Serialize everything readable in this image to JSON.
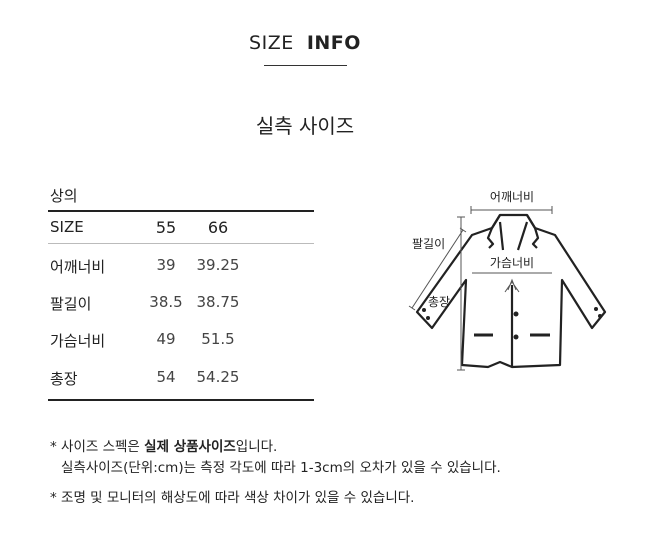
{
  "header": {
    "title_light": "SIZE",
    "title_bold": "INFO",
    "subtitle": "실측 사이즈"
  },
  "table": {
    "category": "상의",
    "columns": [
      "SIZE",
      "55",
      "66"
    ],
    "rows": [
      [
        "어깨너비",
        "39",
        "39.25"
      ],
      [
        "팔길이",
        "38.5",
        "38.75"
      ],
      [
        "가슴너비",
        "49",
        "51.5"
      ],
      [
        "총장",
        "54",
        "54.25"
      ]
    ]
  },
  "diagram": {
    "shoulder": "어깨너비",
    "sleeve": "팔길이",
    "chest": "가슴너비",
    "length": "총장"
  },
  "notes": {
    "n1_prefix": "* 사이즈 스펙은 ",
    "n1_bold": "실제 상품사이즈",
    "n1_suffix": "입니다.",
    "n1_line2": "실측사이즈(단위:cm)는 측정 각도에 따라 1-3cm의 오차가 있을 수 있습니다.",
    "n2": "* 조명 및 모니터의 해상도에 따라 색상 차이가 있을 수 있습니다."
  }
}
